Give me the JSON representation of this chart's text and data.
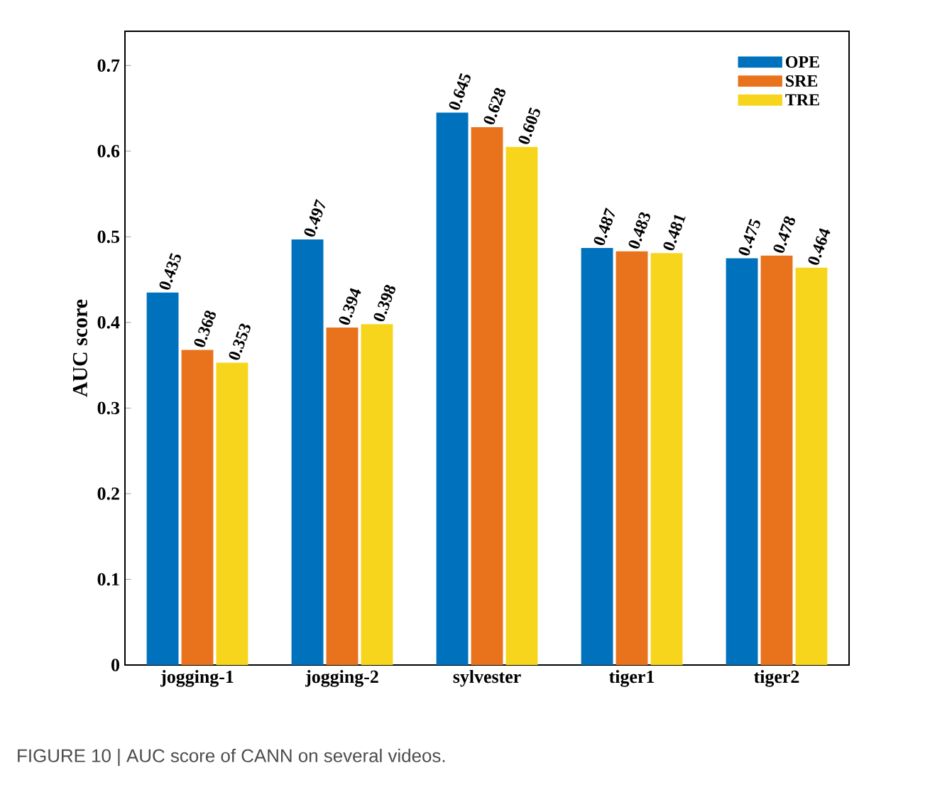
{
  "chart_data": {
    "type": "bar",
    "ylabel": "AUC score",
    "categories": [
      "jogging-1",
      "jogging-2",
      "sylvester",
      "tiger1",
      "tiger2"
    ],
    "series": [
      {
        "name": "OPE",
        "color": "#0072bd",
        "values": [
          0.435,
          0.497,
          0.645,
          0.487,
          0.475
        ],
        "value_labels": [
          "0.435",
          "0.497",
          "0.645",
          "0.487",
          "0.475"
        ]
      },
      {
        "name": "SRE",
        "color": "#e8731c",
        "values": [
          0.368,
          0.394,
          0.628,
          0.483,
          0.478
        ],
        "value_labels": [
          "0.368",
          "0.394",
          "0.628",
          "0.483",
          "0.478"
        ]
      },
      {
        "name": "TRE",
        "color": "#f7d51c",
        "values": [
          0.353,
          0.398,
          0.605,
          0.481,
          0.464
        ],
        "value_labels": [
          "0.353",
          "0.398",
          "0.605",
          "0.481",
          "0.464"
        ]
      }
    ],
    "ylim": [
      0,
      0.74
    ],
    "yticks": [
      0,
      0.1,
      0.2,
      0.3,
      0.4,
      0.5,
      0.6,
      0.7
    ],
    "grid": false,
    "legend": "top right",
    "annotations": [
      "FIGURE 10 | AUC score of CANN on several videos."
    ]
  }
}
